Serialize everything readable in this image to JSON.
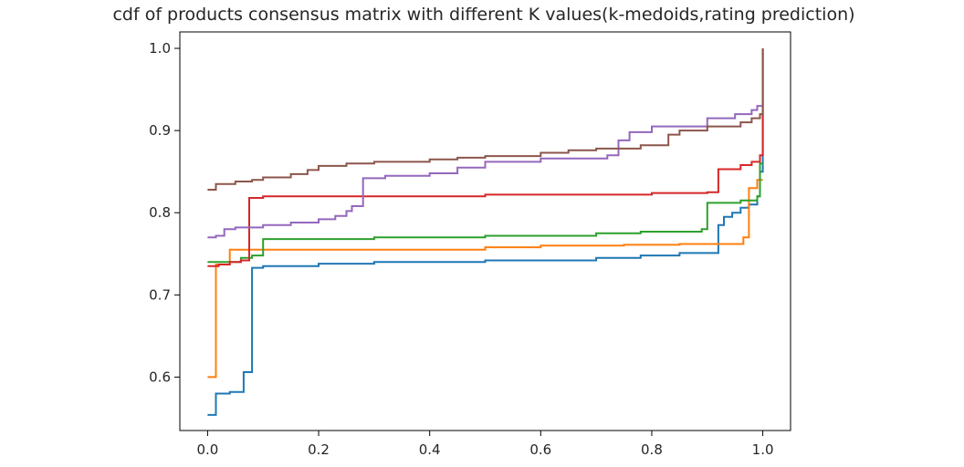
{
  "chart_data": {
    "type": "line",
    "title": "cdf of products consensus matrix with different K values(k-medoids,rating prediction)",
    "xlabel": "",
    "ylabel": "",
    "xlim": [
      -0.05,
      1.05
    ],
    "ylim": [
      0.535,
      1.02
    ],
    "xticks": [
      0.0,
      0.2,
      0.4,
      0.6,
      0.8,
      1.0
    ],
    "xtick_labels": [
      "0.0",
      "0.2",
      "0.4",
      "0.6",
      "0.8",
      "1.0"
    ],
    "yticks": [
      0.6,
      0.7,
      0.8,
      0.9,
      1.0
    ],
    "ytick_labels": [
      "0.6",
      "0.7",
      "0.8",
      "0.9",
      "1.0"
    ],
    "grid": false,
    "legend": "none",
    "step": "post",
    "series": [
      {
        "color": "#1f77b4",
        "x": [
          0.0,
          0.015,
          0.04,
          0.065,
          0.08,
          0.1,
          0.2,
          0.3,
          0.5,
          0.7,
          0.78,
          0.85,
          0.92,
          0.93,
          0.945,
          0.96,
          0.975,
          0.99,
          0.995,
          1.0
        ],
        "y": [
          0.554,
          0.58,
          0.582,
          0.606,
          0.733,
          0.735,
          0.738,
          0.74,
          0.742,
          0.745,
          0.748,
          0.751,
          0.785,
          0.795,
          0.8,
          0.806,
          0.81,
          0.82,
          0.85,
          1.0
        ]
      },
      {
        "color": "#ff7f0e",
        "x": [
          0.0,
          0.015,
          0.04,
          0.2,
          0.5,
          0.6,
          0.75,
          0.85,
          0.965,
          0.975,
          0.99,
          1.0
        ],
        "y": [
          0.6,
          0.737,
          0.755,
          0.755,
          0.758,
          0.76,
          0.761,
          0.762,
          0.77,
          0.83,
          0.84,
          0.84
        ]
      },
      {
        "color": "#2ca02c",
        "x": [
          0.0,
          0.04,
          0.06,
          0.08,
          0.1,
          0.3,
          0.5,
          0.7,
          0.78,
          0.89,
          0.9,
          0.96,
          0.99,
          0.995,
          1.0
        ],
        "y": [
          0.74,
          0.74,
          0.745,
          0.748,
          0.768,
          0.77,
          0.772,
          0.775,
          0.777,
          0.78,
          0.812,
          0.815,
          0.82,
          0.86,
          0.86
        ]
      },
      {
        "color": "#d62728",
        "x": [
          0.0,
          0.02,
          0.04,
          0.06,
          0.075,
          0.1,
          0.3,
          0.5,
          0.7,
          0.8,
          0.9,
          0.92,
          0.96,
          0.98,
          0.995,
          1.0
        ],
        "y": [
          0.735,
          0.737,
          0.74,
          0.742,
          0.818,
          0.82,
          0.82,
          0.822,
          0.822,
          0.824,
          0.825,
          0.853,
          0.858,
          0.862,
          0.87,
          1.0
        ]
      },
      {
        "color": "#9467bd",
        "x": [
          0.0,
          0.015,
          0.03,
          0.05,
          0.1,
          0.15,
          0.2,
          0.23,
          0.25,
          0.26,
          0.28,
          0.32,
          0.4,
          0.45,
          0.5,
          0.6,
          0.72,
          0.74,
          0.76,
          0.8,
          0.9,
          0.95,
          0.98,
          0.99,
          1.0
        ],
        "y": [
          0.77,
          0.772,
          0.78,
          0.782,
          0.785,
          0.788,
          0.792,
          0.796,
          0.802,
          0.808,
          0.842,
          0.845,
          0.848,
          0.855,
          0.862,
          0.866,
          0.87,
          0.888,
          0.898,
          0.905,
          0.915,
          0.92,
          0.925,
          0.93,
          0.93
        ]
      },
      {
        "color": "#8c564b",
        "x": [
          0.0,
          0.015,
          0.05,
          0.08,
          0.1,
          0.15,
          0.18,
          0.2,
          0.25,
          0.3,
          0.4,
          0.45,
          0.5,
          0.6,
          0.65,
          0.7,
          0.78,
          0.83,
          0.85,
          0.9,
          0.96,
          0.98,
          0.995,
          1.0
        ],
        "y": [
          0.828,
          0.835,
          0.838,
          0.84,
          0.843,
          0.847,
          0.852,
          0.857,
          0.86,
          0.862,
          0.865,
          0.867,
          0.869,
          0.873,
          0.876,
          0.878,
          0.882,
          0.895,
          0.9,
          0.905,
          0.91,
          0.915,
          0.92,
          1.0
        ]
      }
    ]
  }
}
